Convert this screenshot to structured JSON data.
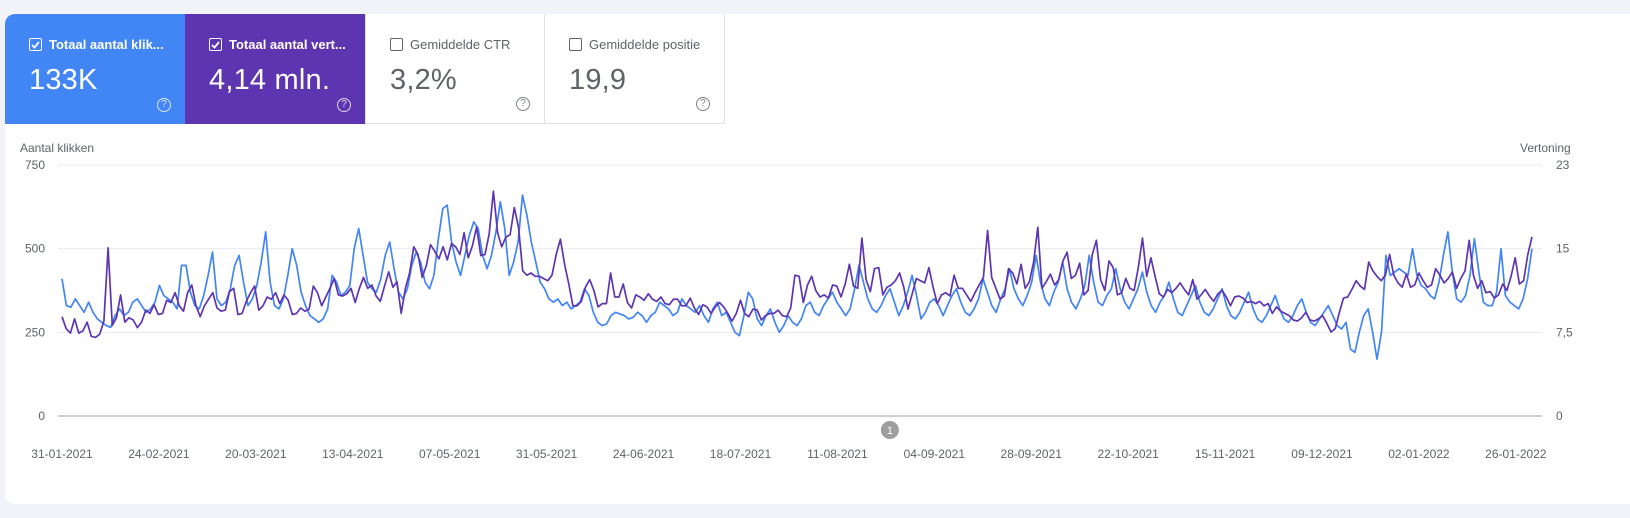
{
  "metrics": [
    {
      "label": "Totaal aantal klik...",
      "value": "133K",
      "checked": true,
      "color": "#4285f4"
    },
    {
      "label": "Totaal aantal vert...",
      "value": "4,14 mln.",
      "checked": true,
      "color": "#5e35b1"
    },
    {
      "label": "Gemiddelde CTR",
      "value": "3,2%",
      "checked": false
    },
    {
      "label": "Gemiddelde positie",
      "value": "19,9",
      "checked": false
    }
  ],
  "help_glyph": "?",
  "annotation": {
    "label": "1",
    "date": "2021-08-24"
  },
  "chart_data": {
    "type": "line",
    "ylabel_left": "Aantal klikken",
    "ylabel_right": "Vertoning",
    "yticks_left": [
      "0",
      "250",
      "500",
      "750"
    ],
    "yticks_right": [
      "0",
      "7,5",
      "15",
      "23"
    ],
    "ylim_left": [
      0,
      750
    ],
    "x_tick_labels": [
      "31-01-2021",
      "24-02-2021",
      "20-03-2021",
      "13-04-2021",
      "07-05-2021",
      "31-05-2021",
      "24-06-2021",
      "18-07-2021",
      "11-08-2021",
      "04-09-2021",
      "28-09-2021",
      "22-10-2021",
      "15-11-2021",
      "09-12-2021",
      "02-01-2022",
      "26-01-2022"
    ],
    "x_start": "2021-01-31",
    "x_end": "2022-01-30",
    "grid": true,
    "series": [
      {
        "name": "Totaal aantal klikken",
        "axis": "left",
        "color": "#4285f4",
        "values": [
          410,
          330,
          325,
          350,
          330,
          310,
          340,
          310,
          290,
          280,
          270,
          265,
          300,
          320,
          300,
          310,
          340,
          350,
          330,
          310,
          320,
          340,
          390,
          360,
          350,
          340,
          320,
          450,
          450,
          370,
          330,
          320,
          360,
          420,
          490,
          350,
          330,
          340,
          380,
          450,
          480,
          400,
          330,
          350,
          390,
          460,
          550,
          400,
          330,
          320,
          350,
          420,
          500,
          450,
          370,
          330,
          300,
          290,
          280,
          290,
          320,
          420,
          400,
          360,
          370,
          390,
          500,
          560,
          480,
          400,
          380,
          370,
          410,
          480,
          520,
          440,
          370,
          350,
          380,
          450,
          490,
          460,
          400,
          380,
          420,
          530,
          620,
          630,
          520,
          460,
          420,
          480,
          540,
          580,
          560,
          480,
          440,
          480,
          550,
          640,
          560,
          420,
          460,
          520,
          660,
          600,
          520,
          460,
          400,
          380,
          350,
          340,
          350,
          330,
          340,
          320,
          330,
          340,
          380,
          360,
          310,
          280,
          270,
          275,
          300,
          310,
          305,
          300,
          290,
          295,
          310,
          300,
          280,
          300,
          310,
          340,
          330,
          320,
          300,
          310,
          350,
          330,
          320,
          310,
          330,
          300,
          280,
          320,
          340,
          300,
          310,
          280,
          250,
          240,
          300,
          370,
          350,
          290,
          270,
          300,
          320,
          280,
          250,
          270,
          300,
          280,
          270,
          290,
          330,
          340,
          310,
          300,
          330,
          350,
          370,
          340,
          320,
          300,
          320,
          380,
          450,
          400,
          350,
          320,
          310,
          330,
          360,
          380,
          340,
          300,
          330,
          370,
          420,
          360,
          290,
          310,
          340,
          350,
          330,
          300,
          330,
          360,
          380,
          340,
          310,
          300,
          320,
          350,
          410,
          370,
          330,
          310,
          350,
          380,
          440,
          380,
          350,
          330,
          360,
          400,
          480,
          400,
          350,
          330,
          370,
          400,
          460,
          380,
          340,
          320,
          350,
          390,
          480,
          400,
          340,
          330,
          360,
          380,
          440,
          380,
          340,
          320,
          350,
          380,
          430,
          370,
          330,
          310,
          340,
          360,
          400,
          350,
          310,
          300,
          330,
          360,
          390,
          340,
          310,
          300,
          320,
          350,
          380,
          330,
          300,
          290,
          310,
          340,
          370,
          320,
          290,
          280,
          300,
          330,
          360,
          320,
          290,
          280,
          300,
          330,
          350,
          310,
          280,
          270,
          290,
          310,
          330,
          300,
          270,
          260,
          280,
          200,
          190,
          250,
          300,
          320,
          250,
          170,
          250,
          480,
          420,
          430,
          440,
          430,
          420,
          500,
          420,
          390,
          380,
          360,
          350,
          400,
          480,
          550,
          430,
          350,
          340,
          360,
          420,
          530,
          430,
          340,
          330,
          330,
          370,
          500,
          360,
          340,
          330,
          320,
          350,
          410,
          500
        ]
      },
      {
        "name": "Totaal aantal vertoningen",
        "axis": "right",
        "color": "#5e35b1",
        "values": [
          9.1,
          8.0,
          7.6,
          8.9,
          7.6,
          7.8,
          8.6,
          7.3,
          7.2,
          7.5,
          8.7,
          15.4,
          8.3,
          9.0,
          11.1,
          8.6,
          9.0,
          8.8,
          8.1,
          8.6,
          9.7,
          9.4,
          10.2,
          9.3,
          9.4,
          10.6,
          10.4,
          11.3,
          10.1,
          9.6,
          11.3,
          12.0,
          10.1,
          9.1,
          10.1,
          10.7,
          11.3,
          9.9,
          9.6,
          9.7,
          11.4,
          11.7,
          9.3,
          9.4,
          10.5,
          11.3,
          11.9,
          9.7,
          10.1,
          10.9,
          10.7,
          11.3,
          10.3,
          11.1,
          10.6,
          9.3,
          9.4,
          9.9,
          9.6,
          9.8,
          11.9,
          11.3,
          10.1,
          10.9,
          11.7,
          12.6,
          11.1,
          11.0,
          11.2,
          11.7,
          10.4,
          11.7,
          12.7,
          11.7,
          12.0,
          11.0,
          10.5,
          11.9,
          13.2,
          11.8,
          12.3,
          9.4,
          11.7,
          13.1,
          15.5,
          14.8,
          12.7,
          13.8,
          15.7,
          15.1,
          14.4,
          15.5,
          14.3,
          15.8,
          15.5,
          14.8,
          16.8,
          14.5,
          15.6,
          17.3,
          14.7,
          14.8,
          16.7,
          20.6,
          16.8,
          15.5,
          16.4,
          16.6,
          19.1,
          17.3,
          13.3,
          12.9,
          13.1,
          12.8,
          12.8,
          12.6,
          12.4,
          12.9,
          14.8,
          16.2,
          13.9,
          12.1,
          10.1,
          10.1,
          10.5,
          11.8,
          12.5,
          11.5,
          10.0,
          10.3,
          10.3,
          13.1,
          10.9,
          10.9,
          12.1,
          10.4,
          9.9,
          11.1,
          10.9,
          10.6,
          11.2,
          10.7,
          10.5,
          10.9,
          10.3,
          10.2,
          10.7,
          10.7,
          10.1,
          10.1,
          10.8,
          9.9,
          9.3,
          10.2,
          10.0,
          9.4,
          10.0,
          10.4,
          10.0,
          9.4,
          8.7,
          9.4,
          10.6,
          9.4,
          9.1,
          9.8,
          9.7,
          8.8,
          9.2,
          9.4,
          9.4,
          9.7,
          9.2,
          9.1,
          9.9,
          12.9,
          12.8,
          10.4,
          12.0,
          12.8,
          11.5,
          10.9,
          11.1,
          10.8,
          12.0,
          11.9,
          10.9,
          12.1,
          13.9,
          11.9,
          11.7,
          16.3,
          12.5,
          11.4,
          13.5,
          13.6,
          11.1,
          11.8,
          12.0,
          12.4,
          13.1,
          11.8,
          9.8,
          11.2,
          12.6,
          12.4,
          12.2,
          13.6,
          11.8,
          10.3,
          11.1,
          11.3,
          11.0,
          12.9,
          11.7,
          11.7,
          11.1,
          10.5,
          11.3,
          12.0,
          12.7,
          17.0,
          12.7,
          11.7,
          10.7,
          11.0,
          13.5,
          13.1,
          12.1,
          13.9,
          11.7,
          12.3,
          14.1,
          17.3,
          11.7,
          12.3,
          13.0,
          12.0,
          12.5,
          14.2,
          15.0,
          12.6,
          12.9,
          14.0,
          11.1,
          11.5,
          14.8,
          16.1,
          12.5,
          11.5,
          14.2,
          13.6,
          11.1,
          11.3,
          12.6,
          11.7,
          11.5,
          13.6,
          16.3,
          12.8,
          14.5,
          12.8,
          11.2,
          10.9,
          11.6,
          11.3,
          11.7,
          12.2,
          11.6,
          11.1,
          12.5,
          10.7,
          11.1,
          11.6,
          11.0,
          10.5,
          11.2,
          11.5,
          10.9,
          10.1,
          10.9,
          11.0,
          10.8,
          10.4,
          10.5,
          10.3,
          10.5,
          10.1,
          10.3,
          9.4,
          10.0,
          9.6,
          9.4,
          9.2,
          8.8,
          8.7,
          9.0,
          9.5,
          8.8,
          8.7,
          8.9,
          9.2,
          8.5,
          7.7,
          8.0,
          9.5,
          10.8,
          10.9,
          11.6,
          12.4,
          11.9,
          11.6,
          14.1,
          13.3,
          12.8,
          12.4,
          12.9,
          14.8,
          12.9,
          12.2,
          11.8,
          13.0,
          11.8,
          12.0,
          13.1,
          12.4,
          11.8,
          12.0,
          13.5,
          12.9,
          12.2,
          12.6,
          13.2,
          11.7,
          12.6,
          13.3,
          16.1,
          12.9,
          11.7,
          12.4,
          11.3,
          11.4,
          10.8,
          11.1,
          12.1,
          11.5,
          12.8,
          14.5,
          12.1,
          12.4,
          14.8,
          16.4
        ]
      }
    ]
  }
}
